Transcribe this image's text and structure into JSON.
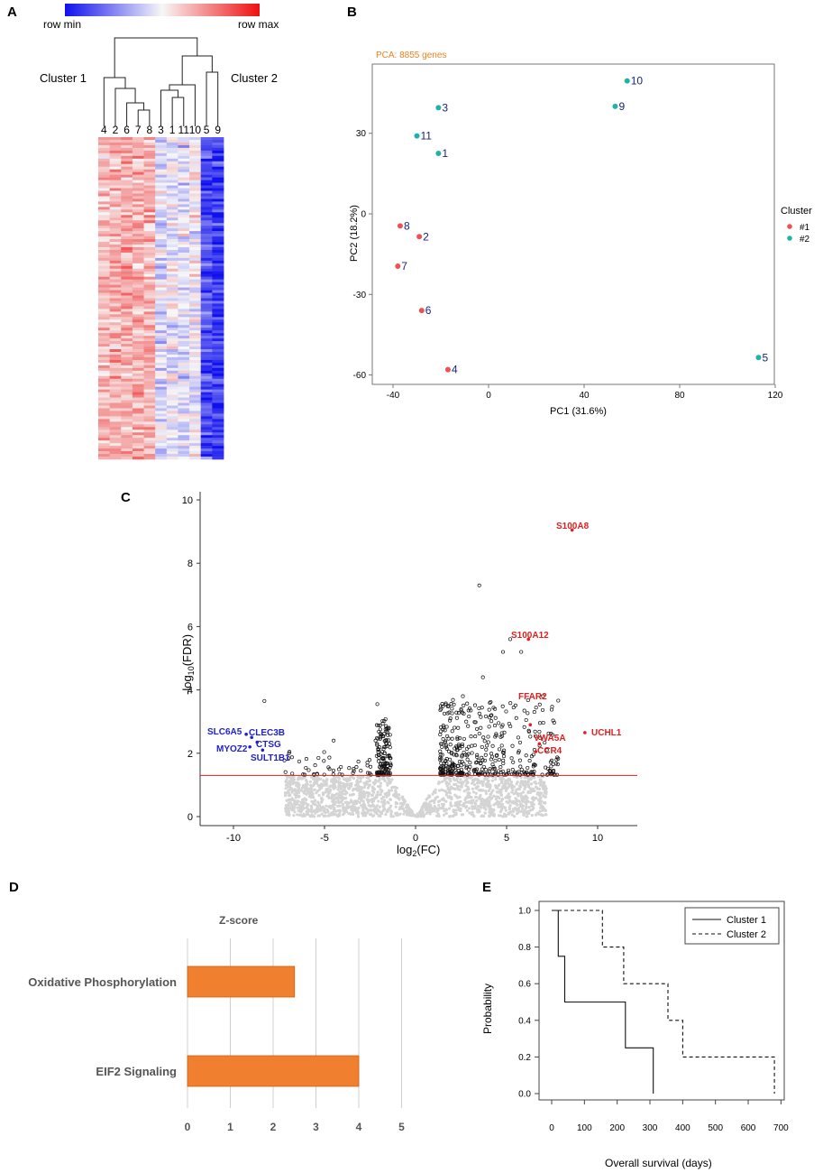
{
  "panels": {
    "A": "A",
    "B": "B",
    "C": "C",
    "D": "D",
    "E": "E"
  },
  "colors": {
    "row_min": "#1010ee",
    "row_mid": "#f7f7f7",
    "row_max": "#ee1010",
    "cluster1": "#f05050",
    "cluster2": "#20b2aa",
    "point_label": "#1a237e",
    "pca_title": "#f08020",
    "down": "#1f1fd0",
    "up": "#e02020",
    "threshold": "#e02020",
    "bar": "#f08030",
    "bar_edge": "#d06010"
  },
  "chart_data": [
    {
      "type": "heatmap",
      "panel": "A",
      "legend": {
        "min_label": "row min",
        "max_label": "row max"
      },
      "cluster_labels": [
        "Cluster 1",
        "Cluster 2"
      ],
      "columns": [
        "4",
        "2",
        "6",
        "7",
        "8",
        "3",
        "1",
        "11",
        "10",
        "5",
        "9"
      ],
      "column_tone": [
        0.25,
        0.3,
        0.35,
        0.3,
        0.3,
        -0.15,
        -0.05,
        -0.1,
        0.0,
        -0.75,
        -0.8
      ]
    },
    {
      "type": "scatter",
      "panel": "B",
      "title": "PCA: 8855 genes",
      "xlabel": "PC1 (31.6%)",
      "ylabel": "PC2 (18.2%)",
      "xlim": [
        -45,
        120
      ],
      "ylim": [
        -62,
        55
      ],
      "xticks": [
        "-40",
        "0",
        "40",
        "80",
        "120"
      ],
      "yticks": [
        "-60",
        "-30",
        "0",
        "30"
      ],
      "legend": {
        "title": "Cluster",
        "entries": [
          "#1",
          "#2"
        ]
      },
      "points": [
        {
          "label": "10",
          "x": 58,
          "y": 49.5,
          "cluster": 2
        },
        {
          "label": "9",
          "x": 53,
          "y": 40,
          "cluster": 2
        },
        {
          "label": "3",
          "x": -21,
          "y": 39.5,
          "cluster": 2
        },
        {
          "label": "11",
          "x": -30,
          "y": 29,
          "cluster": 2
        },
        {
          "label": "1",
          "x": -21,
          "y": 22.5,
          "cluster": 2
        },
        {
          "label": "8",
          "x": -37,
          "y": -4.5,
          "cluster": 1
        },
        {
          "label": "2",
          "x": -29,
          "y": -8.5,
          "cluster": 1
        },
        {
          "label": "7",
          "x": -38,
          "y": -19.5,
          "cluster": 1
        },
        {
          "label": "6",
          "x": -28,
          "y": -36,
          "cluster": 1
        },
        {
          "label": "4",
          "x": -17,
          "y": -58,
          "cluster": 1
        },
        {
          "label": "5",
          "x": 113,
          "y": -53.5,
          "cluster": 2
        }
      ]
    },
    {
      "type": "scatter",
      "panel": "C",
      "title": "",
      "xlabel": "log",
      "xlabel_sub": "2",
      "xlabel_tail": "(FC)",
      "ylabel": "-log",
      "ylabel_sub": "10",
      "ylabel_tail": "(FDR)",
      "xlim": [
        -12,
        12
      ],
      "ylim": [
        -0.3,
        10.3
      ],
      "xticks": [
        "-10",
        "-5",
        "0",
        "5",
        "10"
      ],
      "yticks": [
        "0",
        "2",
        "4",
        "6",
        "8",
        "10"
      ],
      "threshold_y": 1.3,
      "highlight_down": [
        {
          "label": "SLC6A5",
          "x": -9.3,
          "y": 2.6
        },
        {
          "label": "CLEC3B",
          "x": -9.0,
          "y": 2.5
        },
        {
          "label": "CTSG",
          "x": -8.7,
          "y": 2.35
        },
        {
          "label": "MYOZ2",
          "x": -9.1,
          "y": 2.2
        },
        {
          "label": "SULT1B1",
          "x": -8.4,
          "y": 2.1
        }
      ],
      "highlight_up": [
        {
          "label": "S100A8",
          "x": 8.6,
          "y": 9.05
        },
        {
          "label": "S100A12",
          "x": 6.2,
          "y": 5.6
        },
        {
          "label": "FFAR2",
          "x": 6.3,
          "y": 2.9
        },
        {
          "label": "UCHL1",
          "x": 9.3,
          "y": 2.65
        },
        {
          "label": "VWA5A",
          "x": 6.8,
          "y": 2.3
        },
        {
          "label": "CCR4",
          "x": 6.6,
          "y": 2.05
        }
      ]
    },
    {
      "type": "bar",
      "panel": "D",
      "orientation": "horizontal",
      "title": "Z-score",
      "categories": [
        "Oxidative Phosphorylation",
        "EIF2 Signaling"
      ],
      "values": [
        2.5,
        4.0
      ],
      "xlim": [
        0,
        5
      ],
      "xticks": [
        "0",
        "1",
        "2",
        "3",
        "4",
        "5"
      ]
    },
    {
      "type": "line",
      "panel": "E",
      "step": true,
      "xlabel": "Overall survival (days)",
      "ylabel": "Probability",
      "xlim": [
        0,
        700
      ],
      "ylim": [
        0,
        1
      ],
      "xticks": [
        "0",
        "100",
        "200",
        "300",
        "400",
        "500",
        "600",
        "700"
      ],
      "yticks": [
        "0.0",
        "0.2",
        "0.4",
        "0.6",
        "0.8",
        "1.0"
      ],
      "series": [
        {
          "name": "Cluster 1",
          "x": [
            0,
            20,
            20,
            40,
            40,
            225,
            225,
            310,
            310
          ],
          "y": [
            1.0,
            1.0,
            0.75,
            0.75,
            0.5,
            0.5,
            0.25,
            0.25,
            0.0
          ]
        },
        {
          "name": "Cluster 2",
          "x": [
            0,
            155,
            155,
            220,
            220,
            355,
            355,
            400,
            400,
            680,
            680
          ],
          "y": [
            1.0,
            1.0,
            0.8,
            0.8,
            0.6,
            0.6,
            0.4,
            0.4,
            0.2,
            0.2,
            0.0
          ]
        }
      ]
    }
  ]
}
